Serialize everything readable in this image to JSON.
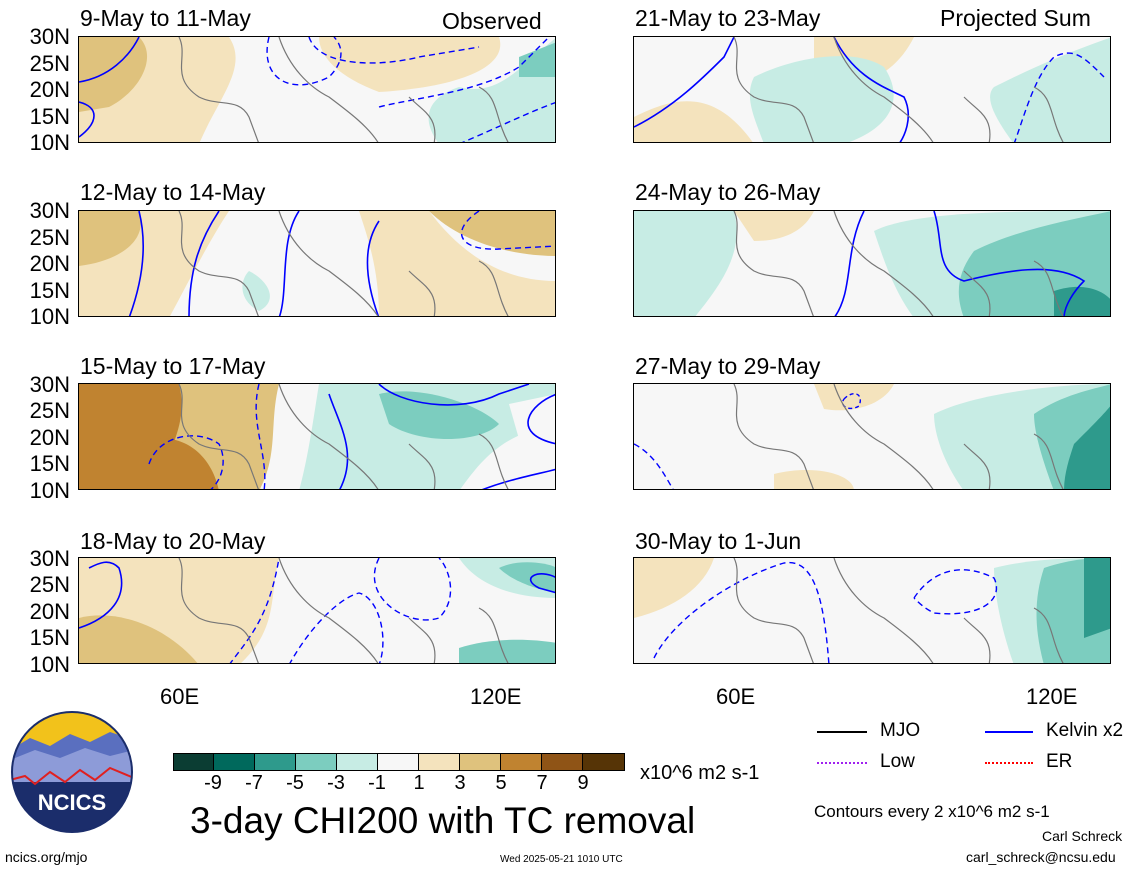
{
  "panels_left": [
    {
      "title": "9-May to 11-May",
      "tag": "Observed"
    },
    {
      "title": "12-May to 14-May",
      "tag": ""
    },
    {
      "title": "15-May to 17-May",
      "tag": ""
    },
    {
      "title": "18-May to 20-May",
      "tag": ""
    }
  ],
  "panels_right": [
    {
      "title": "21-May to 23-May",
      "tag": "Projected Sum"
    },
    {
      "title": "24-May to 26-May",
      "tag": ""
    },
    {
      "title": "27-May to 29-May",
      "tag": ""
    },
    {
      "title": "30-May to 1-Jun",
      "tag": ""
    }
  ],
  "lat_labels": [
    "30N",
    "25N",
    "20N",
    "15N",
    "10N"
  ],
  "lon_labels": [
    "60E",
    "120E"
  ],
  "colorbar": {
    "ticks": [
      "-9",
      "-7",
      "-5",
      "-3",
      "-1",
      "1",
      "3",
      "5",
      "7",
      "9"
    ],
    "colors": [
      "#0b3d33",
      "#00695c",
      "#2e9a8c",
      "#7ccdbf",
      "#c7ece4",
      "#f7f7f7",
      "#f4e3bd",
      "#dfc27d",
      "#c08330",
      "#8f5416",
      "#563406"
    ],
    "units": "x10^6 m2 s-1"
  },
  "title": "3-day CHI200 with TC removal",
  "legend": {
    "mjo": "MJO",
    "kelvin": "Kelvin x2",
    "low": "Low",
    "er": "ER",
    "contours_note": "Contours every 2 x10^6 m2 s-1",
    "colors": {
      "mjo": "#000000",
      "kelvin": "#0000ff",
      "low": "#a020f0",
      "er": "#ff0000"
    }
  },
  "footer": {
    "url": "ncics.org/mjo",
    "timestamp": "Wed 2025-05-21 1010 UTC",
    "author": "Carl Schreck",
    "email": "carl_schreck@ncsu.edu",
    "logo_text": "NCICS"
  }
}
